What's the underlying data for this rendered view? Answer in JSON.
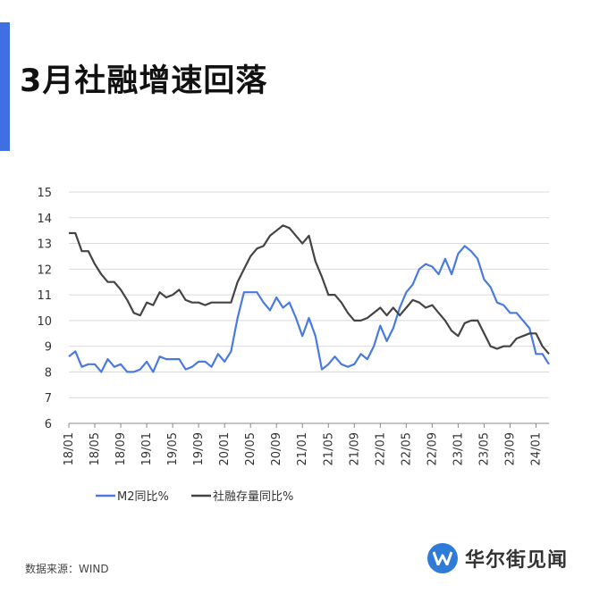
{
  "header": {
    "title": "3月社融增速回落"
  },
  "footer": {
    "source": "数据来源：WIND",
    "brand": "华尔街见闻"
  },
  "colors": {
    "accent": "#3f6fe0",
    "m2": "#4a7ae0",
    "tsf": "#444444",
    "grid": "#d9d9d9"
  },
  "chart_data": {
    "type": "line",
    "title": "",
    "xlabel": "",
    "ylabel": "",
    "ylim": [
      6,
      15
    ],
    "yticks": [
      6,
      7,
      8,
      9,
      10,
      11,
      12,
      13,
      14,
      15
    ],
    "grid": "horizontal",
    "legend_position": "bottom",
    "x_tick_labels": [
      "18/01",
      "18/05",
      "18/09",
      "19/01",
      "19/05",
      "19/09",
      "20/01",
      "20/05",
      "20/09",
      "21/01",
      "21/05",
      "21/09",
      "22/01",
      "22/05",
      "22/09",
      "23/01",
      "23/05",
      "23/09",
      "24/01"
    ],
    "series": [
      {
        "name": "M2同比%",
        "values": [
          8.6,
          8.8,
          8.2,
          8.3,
          8.3,
          8.0,
          8.5,
          8.2,
          8.3,
          8.0,
          8.0,
          8.1,
          8.4,
          8.0,
          8.6,
          8.5,
          8.5,
          8.5,
          8.1,
          8.2,
          8.4,
          8.4,
          8.2,
          8.7,
          8.4,
          8.8,
          10.1,
          11.1,
          11.1,
          11.1,
          10.7,
          10.4,
          10.9,
          10.5,
          10.7,
          10.1,
          9.4,
          10.1,
          9.4,
          8.1,
          8.3,
          8.6,
          8.3,
          8.2,
          8.3,
          8.7,
          8.5,
          9.0,
          9.8,
          9.2,
          9.7,
          10.5,
          11.1,
          11.4,
          12.0,
          12.2,
          12.1,
          11.8,
          12.4,
          11.8,
          12.6,
          12.9,
          12.7,
          12.4,
          11.6,
          11.3,
          10.7,
          10.6,
          10.3,
          10.3,
          10.0,
          9.7,
          8.7,
          8.7,
          8.3
        ]
      },
      {
        "name": "社融存量同比%",
        "values": [
          13.4,
          13.4,
          12.7,
          12.7,
          12.2,
          11.8,
          11.5,
          11.5,
          11.2,
          10.8,
          10.3,
          10.2,
          10.7,
          10.6,
          11.1,
          10.9,
          11.0,
          11.2,
          10.8,
          10.7,
          10.7,
          10.6,
          10.7,
          10.7,
          10.7,
          10.7,
          11.5,
          12.0,
          12.5,
          12.8,
          12.9,
          13.3,
          13.5,
          13.7,
          13.6,
          13.3,
          13.0,
          13.3,
          12.3,
          11.7,
          11.0,
          11.0,
          10.7,
          10.3,
          10.0,
          10.0,
          10.1,
          10.3,
          10.5,
          10.2,
          10.5,
          10.2,
          10.5,
          10.8,
          10.7,
          10.5,
          10.6,
          10.3,
          10.0,
          9.6,
          9.4,
          9.9,
          10.0,
          10.0,
          9.5,
          9.0,
          8.9,
          9.0,
          9.0,
          9.3,
          9.4,
          9.5,
          9.5,
          9.0,
          8.7
        ]
      }
    ]
  }
}
